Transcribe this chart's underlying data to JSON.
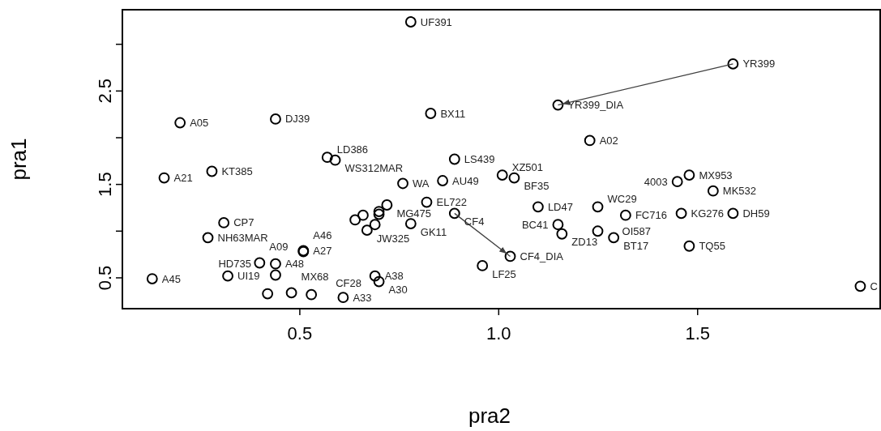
{
  "chart_data": {
    "type": "scatter",
    "xlabel": "pra2",
    "ylabel": "pra1",
    "xlim": [
      0.055,
      1.96
    ],
    "ylim": [
      0.17,
      3.37
    ],
    "xticks": [
      0.5,
      {
        "value": 1,
        "label": "1.0"
      },
      1.5
    ],
    "yticks": [
      0.5,
      {
        "value": 1,
        "label": null
      },
      1.5,
      {
        "value": 2,
        "label": null
      },
      2.5,
      {
        "value": 3,
        "label": null
      }
    ],
    "grid": false,
    "marker": "circle",
    "series": [
      {
        "type": "scatter",
        "color": "#000000",
        "x": [
          0.2,
          0.44,
          0.57,
          0.59,
          0.28,
          0.16,
          0.31,
          0.27,
          0.51,
          0.51,
          0.4,
          0.44,
          0.13,
          0.32,
          0.44,
          0.42,
          0.48,
          0.53,
          0.61,
          0.89,
          0.76,
          0.86,
          1.01,
          1.04,
          0.72,
          0.82,
          0.89,
          0.64,
          0.66,
          0.67,
          0.69,
          0.7,
          0.7,
          0.78,
          1.03,
          0.96,
          0.69,
          0.7,
          1.23,
          1.1,
          1.25,
          1.32,
          1.46,
          1.59,
          1.15,
          1.16,
          1.25,
          1.29,
          1.48,
          1.45,
          1.48,
          1.54,
          0.78,
          0.83,
          1.59,
          1.15,
          1.91
        ],
        "values": [
          2.16,
          2.2,
          1.79,
          1.76,
          1.64,
          1.57,
          1.09,
          0.93,
          0.79,
          0.78,
          0.66,
          0.65,
          0.49,
          0.52,
          0.53,
          0.33,
          0.34,
          0.32,
          0.29,
          1.77,
          1.51,
          1.54,
          1.6,
          1.57,
          1.28,
          1.31,
          1.19,
          1.12,
          1.17,
          1.01,
          1.07,
          1.18,
          1.21,
          1.08,
          0.73,
          0.63,
          0.52,
          0.46,
          1.97,
          1.26,
          1.26,
          1.17,
          1.19,
          1.19,
          1.07,
          0.97,
          1.0,
          0.93,
          0.84,
          1.53,
          1.6,
          1.43,
          3.24,
          2.26,
          2.79,
          2.35,
          0.41
        ]
      },
      {
        "type": "line",
        "color": "#404040",
        "line_style": "solid",
        "marker": "none",
        "x": [
          1.59,
          1.15
        ],
        "values": [
          2.79,
          2.35
        ]
      },
      {
        "type": "line",
        "color": "#404040",
        "line_style": "solid",
        "marker": "none",
        "x": [
          0.89,
          1.03
        ],
        "values": [
          1.19,
          0.73
        ]
      }
    ],
    "annotations": [
      {
        "text": "A05",
        "x": 0.2,
        "y": 2.16
      },
      {
        "text": "DJ39",
        "x": 0.44,
        "y": 2.2
      },
      {
        "text": "LD386",
        "x": 0.57,
        "y": 1.79
      },
      {
        "text": "WS312MAR",
        "x": 0.59,
        "y": 1.76
      },
      {
        "text": "KT385",
        "x": 0.28,
        "y": 1.64
      },
      {
        "text": "A21",
        "x": 0.16,
        "y": 1.57
      },
      {
        "text": "CP7",
        "x": 0.31,
        "y": 1.09
      },
      {
        "text": "NH63MAR",
        "x": 0.27,
        "y": 0.93
      },
      {
        "text": "A27",
        "x": 0.51,
        "y": 0.79
      },
      {
        "text": "A46",
        "x": 0.51,
        "y": 0.78
      },
      {
        "text": "A09",
        "x": 0.4,
        "y": 0.66
      },
      {
        "text": "A48",
        "x": 0.44,
        "y": 0.65
      },
      {
        "text": "A45",
        "x": 0.13,
        "y": 0.49
      },
      {
        "text": "UI19",
        "x": 0.32,
        "y": 0.52
      },
      {
        "text": "HD735",
        "x": 0.44,
        "y": 0.53
      },
      {
        "text": "MX68",
        "x": 0.48,
        "y": 0.34
      },
      {
        "text": "CF28",
        "x": 0.53,
        "y": 0.32
      },
      {
        "text": "A33",
        "x": 0.61,
        "y": 0.29
      },
      {
        "text": "LS439",
        "x": 0.89,
        "y": 1.77
      },
      {
        "text": "WA",
        "x": 0.76,
        "y": 1.51
      },
      {
        "text": "AU49",
        "x": 0.86,
        "y": 1.54
      },
      {
        "text": "XZ501",
        "x": 1.01,
        "y": 1.6
      },
      {
        "text": "BF35",
        "x": 1.04,
        "y": 1.57
      },
      {
        "text": "MG475",
        "x": 0.72,
        "y": 1.28
      },
      {
        "text": "EL722",
        "x": 0.82,
        "y": 1.31
      },
      {
        "text": "CF4",
        "x": 0.89,
        "y": 1.19
      },
      {
        "text": "JW325",
        "x": 0.67,
        "y": 1.01
      },
      {
        "text": "GK11",
        "x": 0.78,
        "y": 1.08
      },
      {
        "text": "CF4_DIA",
        "x": 1.03,
        "y": 0.73
      },
      {
        "text": "LF25",
        "x": 0.96,
        "y": 0.63
      },
      {
        "text": "A38",
        "x": 0.69,
        "y": 0.52
      },
      {
        "text": "A30",
        "x": 0.7,
        "y": 0.46
      },
      {
        "text": "A02",
        "x": 1.23,
        "y": 1.97
      },
      {
        "text": "LD47",
        "x": 1.1,
        "y": 1.26
      },
      {
        "text": "WC29",
        "x": 1.25,
        "y": 1.26
      },
      {
        "text": "FC716",
        "x": 1.32,
        "y": 1.17
      },
      {
        "text": "KG276",
        "x": 1.46,
        "y": 1.19
      },
      {
        "text": "DH59",
        "x": 1.59,
        "y": 1.19
      },
      {
        "text": "BC41",
        "x": 1.15,
        "y": 1.07
      },
      {
        "text": "ZD13",
        "x": 1.16,
        "y": 0.97
      },
      {
        "text": "OI587",
        "x": 1.25,
        "y": 1.0
      },
      {
        "text": "BT17",
        "x": 1.29,
        "y": 0.93
      },
      {
        "text": "TQ55",
        "x": 1.48,
        "y": 0.84
      },
      {
        "text": "4003",
        "x": 1.45,
        "y": 1.53
      },
      {
        "text": "MX953",
        "x": 1.48,
        "y": 1.6
      },
      {
        "text": "MK532",
        "x": 1.54,
        "y": 1.43
      },
      {
        "text": "UF391",
        "x": 0.78,
        "y": 3.24
      },
      {
        "text": "BX11",
        "x": 0.83,
        "y": 2.26
      },
      {
        "text": "YR399",
        "x": 1.59,
        "y": 2.79
      },
      {
        "text": "YR399_DIA",
        "x": 1.15,
        "y": 2.35
      },
      {
        "text": "C",
        "x": 1.91,
        "y": 0.41
      }
    ]
  }
}
